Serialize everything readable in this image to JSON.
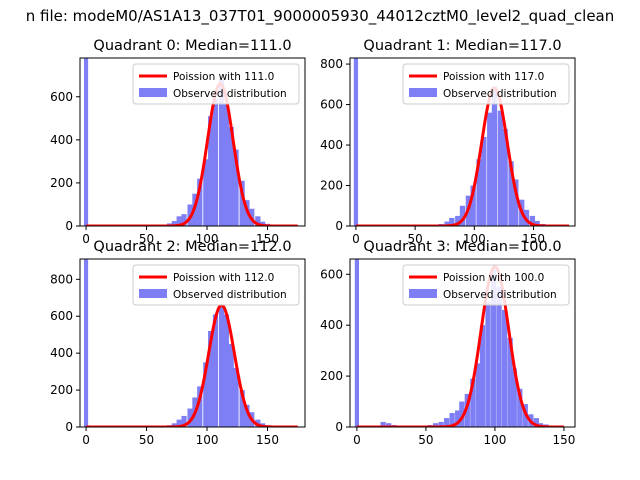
{
  "figure": {
    "suptitle": "n file: modeM0/AS1A13_037T01_9000005930_44012cztM0_level2_quad_clean"
  },
  "chart_data": [
    {
      "type": "bar",
      "title": "Quadrant 0: Median=111.0",
      "xlim": [
        -5,
        181
      ],
      "ylim": [
        0,
        780
      ],
      "xticks": [
        0,
        50,
        100,
        150
      ],
      "yticks": [
        0,
        200,
        400,
        600
      ],
      "grid": false,
      "legend": {
        "position": "top-right",
        "entries": [
          "Poission with 111.0",
          "Observed distribution"
        ]
      },
      "poisson": {
        "name": "Poission with 111.0",
        "mean": 111.0,
        "peak": 660,
        "x_range": [
          0,
          175
        ]
      },
      "series": [
        {
          "name": "Observed distribution",
          "bin_width": 4.3,
          "bins": [
            [
              0,
              780
            ],
            [
              69,
              12
            ],
            [
              73,
              23
            ],
            [
              77,
              45
            ],
            [
              81,
              55
            ],
            [
              86,
              100
            ],
            [
              90,
              150
            ],
            [
              94,
              220
            ],
            [
              99,
              310
            ],
            [
              103,
              510
            ],
            [
              107,
              590
            ],
            [
              112,
              680
            ],
            [
              116,
              570
            ],
            [
              120,
              460
            ],
            [
              124,
              355
            ],
            [
              129,
              210
            ],
            [
              133,
              120
            ],
            [
              137,
              80
            ],
            [
              142,
              45
            ],
            [
              146,
              20
            ],
            [
              150,
              10
            ]
          ]
        }
      ]
    },
    {
      "type": "bar",
      "title": "Quadrant 1: Median=117.0",
      "xlim": [
        -5,
        185
      ],
      "ylim": [
        0,
        830
      ],
      "xticks": [
        0,
        50,
        100,
        150
      ],
      "yticks": [
        0,
        200,
        400,
        600,
        800
      ],
      "grid": false,
      "legend": {
        "position": "top-right",
        "entries": [
          "Poission with 117.0",
          "Observed distribution"
        ]
      },
      "poisson": {
        "name": "Poission with 117.0",
        "mean": 117.0,
        "peak": 680,
        "x_range": [
          0,
          180
        ]
      },
      "series": [
        {
          "name": "Observed distribution",
          "bin_width": 4.5,
          "bins": [
            [
              0,
              830
            ],
            [
              72,
              10
            ],
            [
              77,
              22
            ],
            [
              81,
              40
            ],
            [
              86,
              50
            ],
            [
              90,
              100
            ],
            [
              95,
              150
            ],
            [
              99,
              200
            ],
            [
              104,
              330
            ],
            [
              108,
              440
            ],
            [
              113,
              560
            ],
            [
              117,
              690
            ],
            [
              122,
              570
            ],
            [
              126,
              480
            ],
            [
              131,
              320
            ],
            [
              135,
              230
            ],
            [
              140,
              130
            ],
            [
              144,
              80
            ],
            [
              149,
              50
            ],
            [
              153,
              25
            ],
            [
              158,
              10
            ]
          ]
        }
      ]
    },
    {
      "type": "bar",
      "title": "Quadrant 2: Median=112.0",
      "xlim": [
        -5,
        181
      ],
      "ylim": [
        0,
        910
      ],
      "xticks": [
        0,
        50,
        100,
        150
      ],
      "yticks": [
        0,
        200,
        400,
        600,
        800
      ],
      "grid": false,
      "legend": {
        "position": "top-right",
        "entries": [
          "Poission with 112.0",
          "Observed distribution"
        ]
      },
      "poisson": {
        "name": "Poission with 112.0",
        "mean": 112.0,
        "peak": 660,
        "x_range": [
          0,
          175
        ]
      },
      "series": [
        {
          "name": "Observed distribution",
          "bin_width": 4.3,
          "bins": [
            [
              0,
              910
            ],
            [
              69,
              10
            ],
            [
              73,
              20
            ],
            [
              77,
              40
            ],
            [
              81,
              60
            ],
            [
              86,
              100
            ],
            [
              90,
              160
            ],
            [
              94,
              220
            ],
            [
              99,
              350
            ],
            [
              103,
              520
            ],
            [
              107,
              610
            ],
            [
              112,
              650
            ],
            [
              116,
              610
            ],
            [
              120,
              450
            ],
            [
              124,
              320
            ],
            [
              129,
              200
            ],
            [
              133,
              120
            ],
            [
              137,
              80
            ],
            [
              142,
              40
            ],
            [
              146,
              20
            ],
            [
              150,
              10
            ]
          ]
        }
      ]
    },
    {
      "type": "bar",
      "title": "Quadrant 3: Median=100.0",
      "xlim": [
        -5,
        158
      ],
      "ylim": [
        0,
        660
      ],
      "xticks": [
        0,
        50,
        100,
        150
      ],
      "yticks": [
        0,
        200,
        400,
        600
      ],
      "grid": false,
      "legend": {
        "position": "top-right",
        "entries": [
          "Poission with 100.0",
          "Observed distribution"
        ]
      },
      "poisson": {
        "name": "Poission with 100.0",
        "mean": 100.0,
        "peak": 630,
        "x_range": [
          0,
          150
        ]
      },
      "series": [
        {
          "name": "Observed distribution",
          "bin_width": 3.8,
          "bins": [
            [
              0,
              660
            ],
            [
              19,
              20
            ],
            [
              23,
              15
            ],
            [
              27,
              8
            ],
            [
              31,
              5
            ],
            [
              50,
              5
            ],
            [
              53,
              8
            ],
            [
              57,
              15
            ],
            [
              61,
              20
            ],
            [
              65,
              35
            ],
            [
              69,
              55
            ],
            [
              73,
              65
            ],
            [
              76,
              100
            ],
            [
              80,
              130
            ],
            [
              84,
              190
            ],
            [
              88,
              250
            ],
            [
              91,
              400
            ],
            [
              95,
              490
            ],
            [
              99,
              620
            ],
            [
              103,
              550
            ],
            [
              107,
              460
            ],
            [
              111,
              350
            ],
            [
              114,
              230
            ],
            [
              118,
              150
            ],
            [
              122,
              90
            ],
            [
              126,
              50
            ],
            [
              130,
              35
            ],
            [
              133,
              15
            ],
            [
              137,
              10
            ]
          ]
        }
      ]
    }
  ],
  "colors": {
    "poisson": "#ff0000",
    "observed": "#7f7ff5"
  }
}
